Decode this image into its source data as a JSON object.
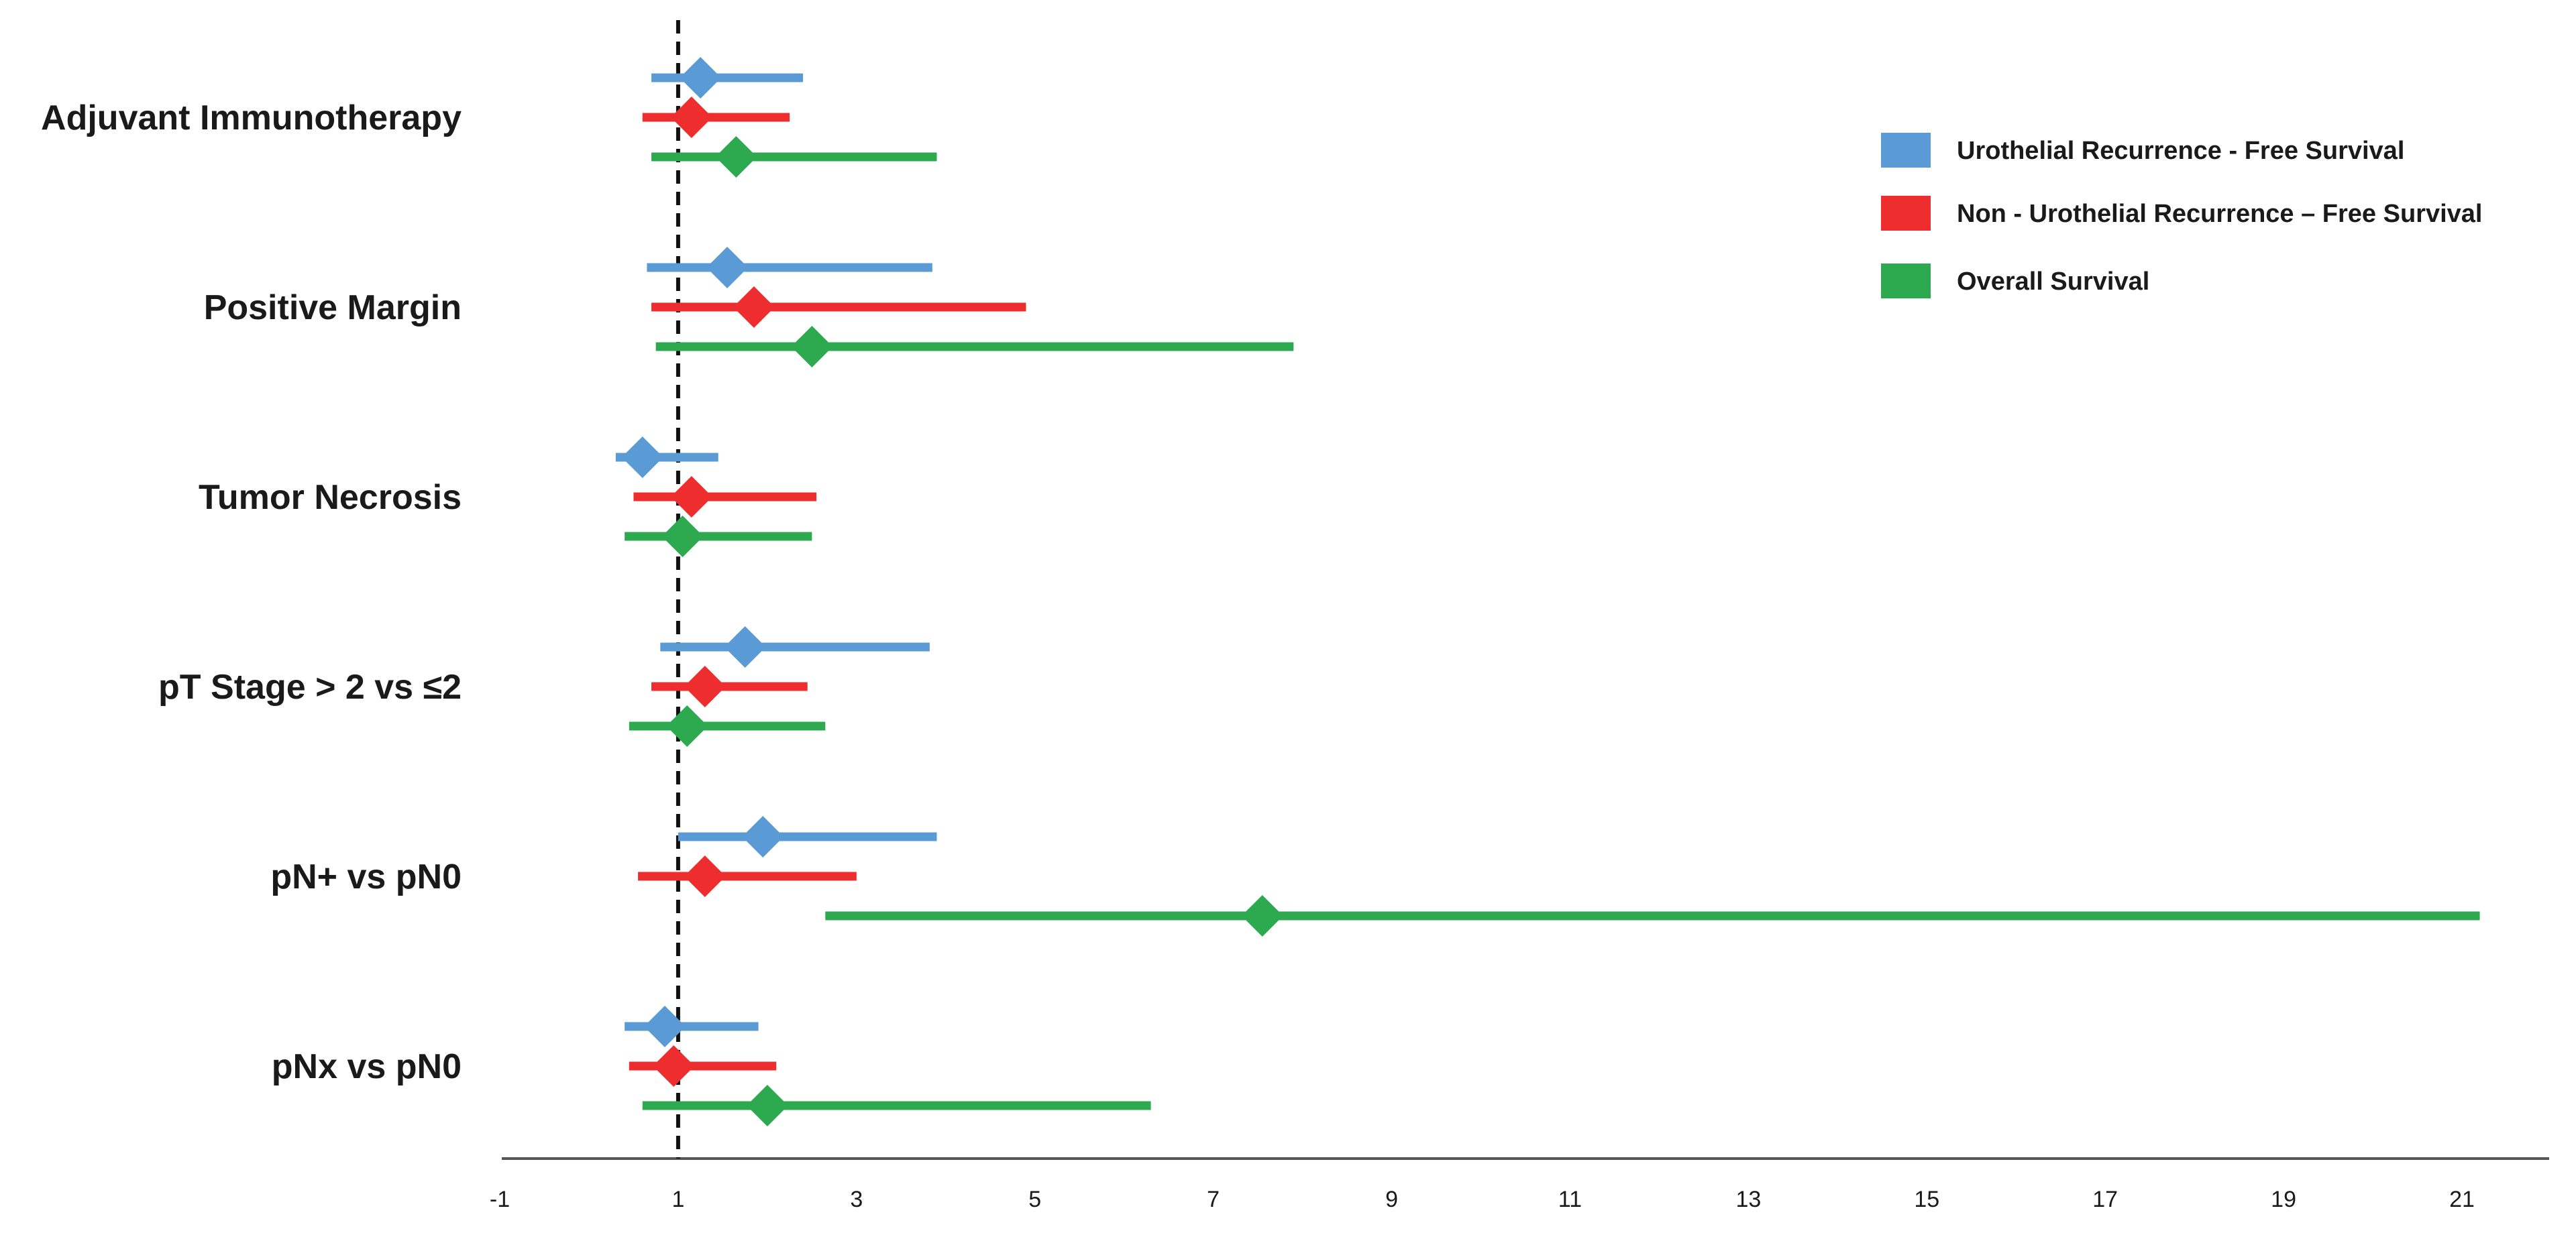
{
  "chart_data": {
    "type": "forest",
    "title": "",
    "xlabel": "",
    "ylabel": "",
    "xlim": [
      -1,
      22
    ],
    "xticks": [
      -1,
      1,
      3,
      5,
      7,
      9,
      11,
      13,
      15,
      17,
      19,
      21
    ],
    "reference_line": 1,
    "legend_position": "top-right",
    "categories": [
      "Adjuvant Immunotherapy",
      "Positive Margin",
      "Tumor Necrosis",
      "pT Stage > 2 vs ≤2",
      "pN+ vs pN0",
      "pNx vs pN0"
    ],
    "series": [
      {
        "name": "Urothelial Recurrence - Free Survival",
        "color": "#5b9bd5",
        "points": [
          {
            "estimate": 1.25,
            "lower": 0.7,
            "upper": 2.4
          },
          {
            "estimate": 1.55,
            "lower": 0.65,
            "upper": 3.85
          },
          {
            "estimate": 0.6,
            "lower": 0.3,
            "upper": 1.45
          },
          {
            "estimate": 1.75,
            "lower": 0.8,
            "upper": 3.82
          },
          {
            "estimate": 1.95,
            "lower": 1.0,
            "upper": 3.9
          },
          {
            "estimate": 0.85,
            "lower": 0.4,
            "upper": 1.9
          }
        ]
      },
      {
        "name": "Non - Urothelial Recurrence – Free Survival",
        "color": "#ee2e2e",
        "points": [
          {
            "estimate": 1.15,
            "lower": 0.6,
            "upper": 2.25
          },
          {
            "estimate": 1.85,
            "lower": 0.7,
            "upper": 4.9
          },
          {
            "estimate": 1.15,
            "lower": 0.5,
            "upper": 2.55
          },
          {
            "estimate": 1.3,
            "lower": 0.7,
            "upper": 2.45
          },
          {
            "estimate": 1.3,
            "lower": 0.55,
            "upper": 3.0
          },
          {
            "estimate": 0.95,
            "lower": 0.45,
            "upper": 2.1
          }
        ]
      },
      {
        "name": "Overall Survival",
        "color": "#2daa4f",
        "points": [
          {
            "estimate": 1.65,
            "lower": 0.7,
            "upper": 3.9
          },
          {
            "estimate": 2.5,
            "lower": 0.75,
            "upper": 7.9
          },
          {
            "estimate": 1.05,
            "lower": 0.4,
            "upper": 2.5
          },
          {
            "estimate": 1.1,
            "lower": 0.45,
            "upper": 2.65
          },
          {
            "estimate": 7.55,
            "lower": 2.65,
            "upper": 21.2
          },
          {
            "estimate": 2.0,
            "lower": 0.6,
            "upper": 6.3
          }
        ]
      }
    ]
  }
}
